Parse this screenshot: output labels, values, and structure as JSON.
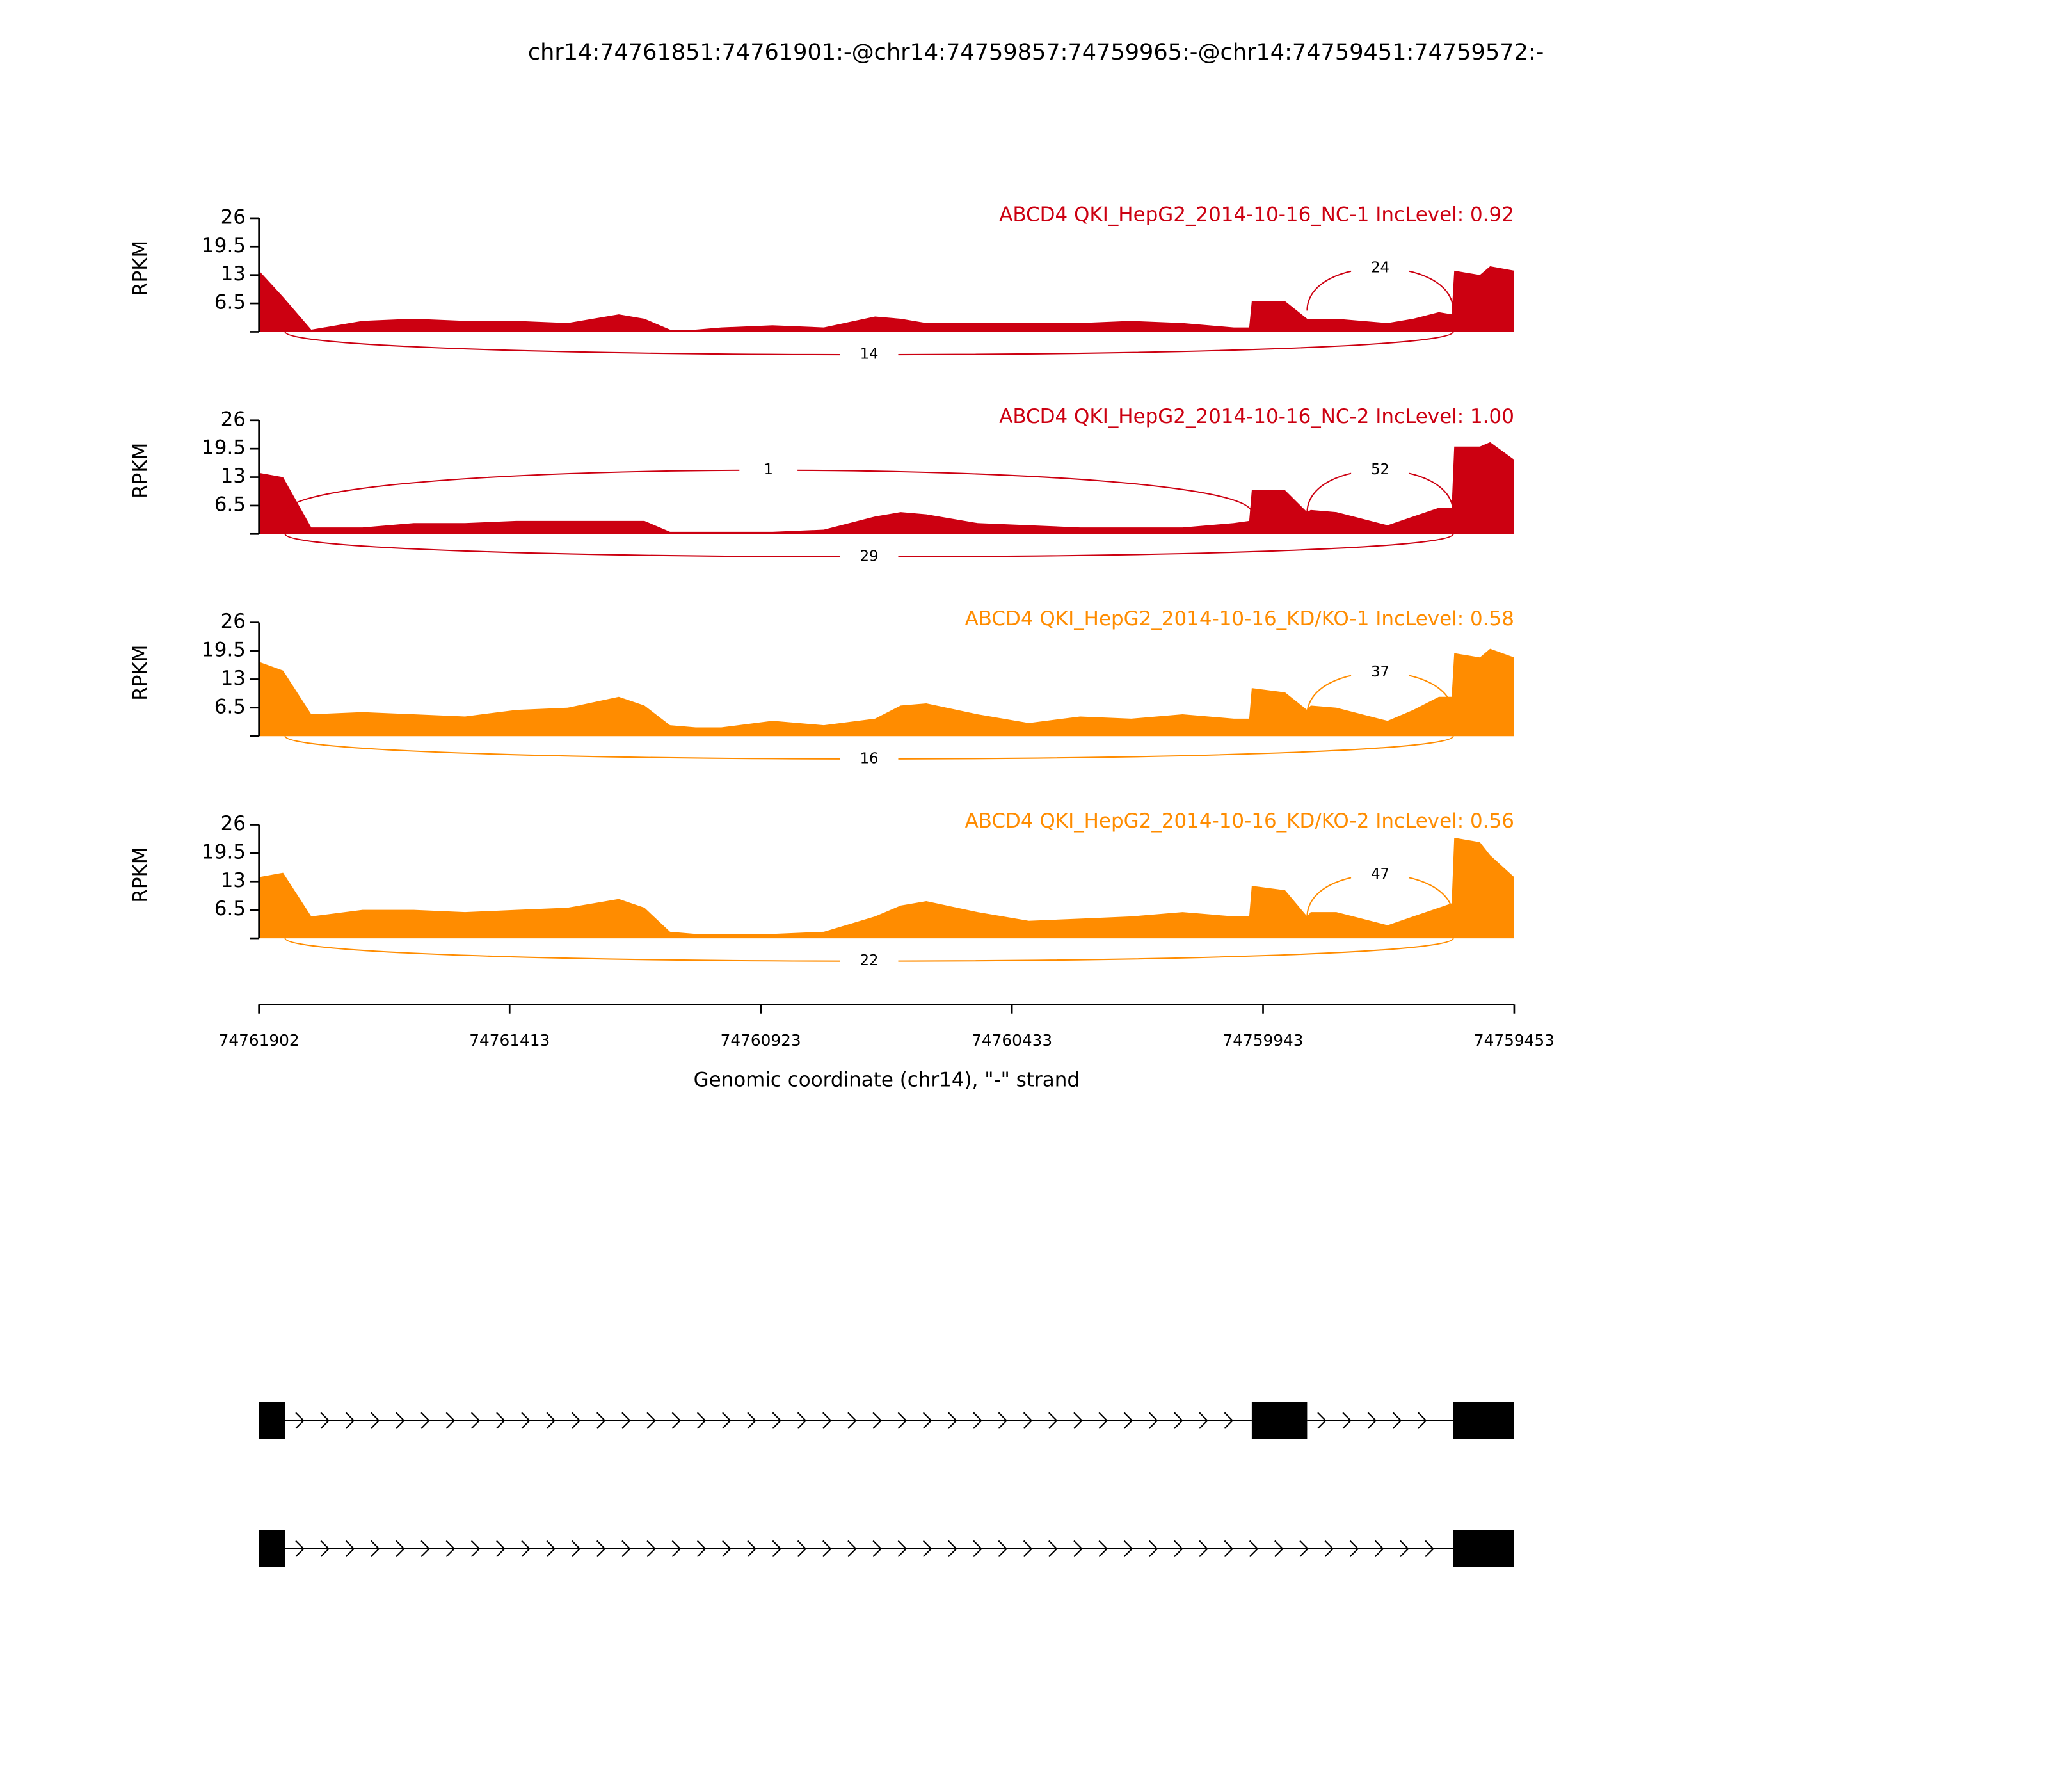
{
  "chart_data": {
    "type": "sashimi",
    "title": "chr14:74761851:74761901:-@chr14:74759857:74759965:-@chr14:74759451:74759572:-",
    "xlabel": "Genomic coordinate (chr14), \"-\" strand",
    "ylabel": "RPKM",
    "xlim": [
      74761902,
      74759453
    ],
    "xticks": [
      74761902,
      74761413,
      74760923,
      74760433,
      74759943,
      74759453
    ],
    "x": [
      74761902,
      74761855,
      74761800,
      74761700,
      74761600,
      74761500,
      74761400,
      74761300,
      74761200,
      74761150,
      74761100,
      74761050,
      74761000,
      74760900,
      74760800,
      74760700,
      74760650,
      74760600,
      74760500,
      74760400,
      74760300,
      74760200,
      74760100,
      74760000,
      74759970,
      74759965,
      74759900,
      74759857,
      74759850,
      74759800,
      74759700,
      74759650,
      74759600,
      74759575,
      74759570,
      74759520,
      74759500,
      74759453
    ],
    "tracks": [
      {
        "title": "ABCD4 QKI_HepG2_2014-10-16_NC-1 IncLevel: 0.92",
        "color": "#cc0011",
        "ylim": [
          0,
          26
        ],
        "yticks": [
          6.5,
          13,
          19.5,
          26
        ],
        "values": [
          14,
          8,
          0.5,
          2.5,
          3,
          2.5,
          2.5,
          2,
          4,
          3,
          0.5,
          0.5,
          1,
          1.5,
          1,
          3.5,
          3,
          2,
          2,
          2,
          2,
          2.5,
          2,
          1,
          1,
          7,
          7,
          3,
          3,
          3,
          2,
          3,
          4.5,
          4,
          14,
          13,
          15,
          14
        ],
        "junctions": [
          {
            "start": 74761851,
            "end": 74759572,
            "count": 14,
            "side": "below"
          },
          {
            "start": 74759857,
            "end": 74759572,
            "count": 24,
            "side": "above"
          }
        ]
      },
      {
        "title": "ABCD4 QKI_HepG2_2014-10-16_NC-2 IncLevel: 1.00",
        "color": "#cc0011",
        "ylim": [
          0,
          26
        ],
        "yticks": [
          6.5,
          13,
          19.5,
          26
        ],
        "values": [
          14,
          13,
          1.5,
          1.5,
          2.5,
          2.5,
          3,
          3,
          3,
          3,
          0.5,
          0.5,
          0.5,
          0.5,
          1,
          4,
          5,
          4.5,
          2.5,
          2,
          1.5,
          1.5,
          1.5,
          2.5,
          3,
          10,
          10,
          5,
          5.5,
          5,
          2,
          4,
          6,
          6,
          20,
          20,
          21,
          17
        ],
        "junctions": [
          {
            "start": 74761851,
            "end": 74759965,
            "count": 1,
            "side": "above"
          },
          {
            "start": 74759857,
            "end": 74759572,
            "count": 52,
            "side": "above"
          },
          {
            "start": 74761851,
            "end": 74759572,
            "count": 29,
            "side": "below"
          }
        ]
      },
      {
        "title": "ABCD4 QKI_HepG2_2014-10-16_KD/KO-1 IncLevel: 0.58",
        "color": "#ff8c00",
        "ylim": [
          0,
          26
        ],
        "yticks": [
          6.5,
          13,
          19.5,
          26
        ],
        "values": [
          17,
          15,
          5,
          5.5,
          5,
          4.5,
          6,
          6.5,
          9,
          7,
          2.5,
          2,
          2,
          3.5,
          2.5,
          4,
          7,
          7.5,
          5,
          3,
          4.5,
          4,
          5,
          4,
          4,
          11,
          10,
          6,
          7,
          6.5,
          3.5,
          6,
          9,
          9,
          19,
          18,
          20,
          18
        ],
        "junctions": [
          {
            "start": 74759857,
            "end": 74759572,
            "count": 37,
            "side": "above"
          },
          {
            "start": 74761851,
            "end": 74759572,
            "count": 16,
            "side": "below"
          }
        ]
      },
      {
        "title": "ABCD4 QKI_HepG2_2014-10-16_KD/KO-2 IncLevel: 0.56",
        "color": "#ff8c00",
        "ylim": [
          0,
          26
        ],
        "yticks": [
          6.5,
          13,
          19.5,
          26
        ],
        "values": [
          14,
          15,
          5,
          6.5,
          6.5,
          6,
          6.5,
          7,
          9,
          7,
          1.5,
          1,
          1,
          1,
          1.5,
          5,
          7.5,
          8.5,
          6,
          4,
          4.5,
          5,
          6,
          5,
          5,
          12,
          11,
          5,
          6,
          6,
          3,
          5,
          7,
          8,
          23,
          22,
          19,
          14
        ],
        "junctions": [
          {
            "start": 74759857,
            "end": 74759572,
            "count": 47,
            "side": "above"
          },
          {
            "start": 74761851,
            "end": 74759572,
            "count": 22,
            "side": "below"
          }
        ]
      }
    ],
    "transcripts": [
      {
        "exons": [
          [
            74761902,
            74761851
          ],
          [
            74759965,
            74759857
          ],
          [
            74759572,
            74759453
          ]
        ]
      },
      {
        "exons": [
          [
            74761902,
            74761851
          ],
          [
            74759572,
            74759453
          ]
        ]
      }
    ]
  }
}
